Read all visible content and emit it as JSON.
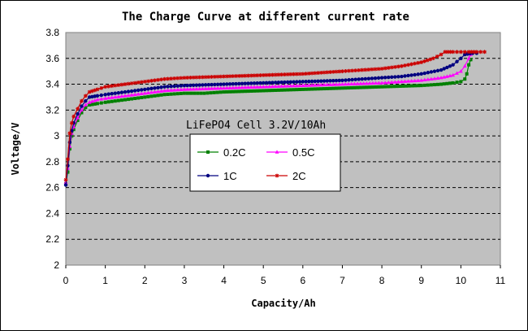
{
  "chart_data": {
    "type": "line",
    "title": "The Charge Curve at different current rate",
    "xlabel": "Capacity/Ah",
    "ylabel": "Voltage/V",
    "xlim": [
      0,
      11
    ],
    "ylim": [
      2,
      3.8
    ],
    "x_ticks": [
      "0",
      "1",
      "2",
      "3",
      "4",
      "5",
      "6",
      "7",
      "8",
      "9",
      "10",
      "11"
    ],
    "y_ticks": [
      "2",
      "2.2",
      "2.4",
      "2.6",
      "2.8",
      "3",
      "3.2",
      "3.4",
      "3.6",
      "3.8"
    ],
    "grid": "horizontal dashed",
    "annotation": "LiFePO4 Cell 3.2V/10Ah",
    "legend_position": "center-left inside plot",
    "series": [
      {
        "name": "0.2C",
        "color": "#008000",
        "marker": "square",
        "points": [
          [
            0,
            2.63
          ],
          [
            0.05,
            2.72
          ],
          [
            0.1,
            2.9
          ],
          [
            0.15,
            3.0
          ],
          [
            0.2,
            3.05
          ],
          [
            0.3,
            3.12
          ],
          [
            0.4,
            3.18
          ],
          [
            0.5,
            3.22
          ],
          [
            0.6,
            3.24
          ],
          [
            0.8,
            3.25
          ],
          [
            1,
            3.26
          ],
          [
            1.5,
            3.28
          ],
          [
            2,
            3.3
          ],
          [
            2.5,
            3.32
          ],
          [
            3,
            3.33
          ],
          [
            3.5,
            3.33
          ],
          [
            4,
            3.34
          ],
          [
            5,
            3.35
          ],
          [
            6,
            3.36
          ],
          [
            7,
            3.37
          ],
          [
            8,
            3.38
          ],
          [
            9,
            3.39
          ],
          [
            9.5,
            3.4
          ],
          [
            9.8,
            3.41
          ],
          [
            10,
            3.42
          ],
          [
            10.1,
            3.44
          ],
          [
            10.15,
            3.48
          ],
          [
            10.2,
            3.55
          ],
          [
            10.25,
            3.59
          ]
        ]
      },
      {
        "name": "0.5C",
        "color": "#ff00ff",
        "marker": "triangle",
        "points": [
          [
            0,
            2.64
          ],
          [
            0.05,
            2.75
          ],
          [
            0.1,
            2.92
          ],
          [
            0.15,
            3.02
          ],
          [
            0.2,
            3.07
          ],
          [
            0.3,
            3.14
          ],
          [
            0.4,
            3.2
          ],
          [
            0.5,
            3.24
          ],
          [
            0.6,
            3.26
          ],
          [
            0.8,
            3.28
          ],
          [
            1,
            3.29
          ],
          [
            1.5,
            3.31
          ],
          [
            2,
            3.33
          ],
          [
            2.5,
            3.35
          ],
          [
            3,
            3.36
          ],
          [
            4,
            3.37
          ],
          [
            5,
            3.38
          ],
          [
            6,
            3.39
          ],
          [
            7,
            3.4
          ],
          [
            8,
            3.41
          ],
          [
            8.5,
            3.42
          ],
          [
            9,
            3.43
          ],
          [
            9.5,
            3.45
          ],
          [
            9.8,
            3.47
          ],
          [
            10,
            3.5
          ],
          [
            10.1,
            3.54
          ],
          [
            10.2,
            3.6
          ],
          [
            10.25,
            3.63
          ]
        ]
      },
      {
        "name": "1C",
        "color": "#000080",
        "marker": "circle",
        "points": [
          [
            0,
            2.62
          ],
          [
            0.05,
            2.77
          ],
          [
            0.1,
            2.95
          ],
          [
            0.15,
            3.04
          ],
          [
            0.2,
            3.1
          ],
          [
            0.3,
            3.17
          ],
          [
            0.4,
            3.23
          ],
          [
            0.5,
            3.27
          ],
          [
            0.6,
            3.3
          ],
          [
            0.8,
            3.31
          ],
          [
            1,
            3.32
          ],
          [
            1.5,
            3.34
          ],
          [
            2,
            3.36
          ],
          [
            2.5,
            3.38
          ],
          [
            3,
            3.39
          ],
          [
            4,
            3.4
          ],
          [
            5,
            3.41
          ],
          [
            6,
            3.42
          ],
          [
            7,
            3.43
          ],
          [
            7.5,
            3.44
          ],
          [
            8,
            3.45
          ],
          [
            8.5,
            3.46
          ],
          [
            9,
            3.48
          ],
          [
            9.5,
            3.51
          ],
          [
            9.8,
            3.55
          ],
          [
            10,
            3.6
          ],
          [
            10.1,
            3.63
          ],
          [
            10.3,
            3.64
          ],
          [
            10.4,
            3.64
          ]
        ]
      },
      {
        "name": "2C",
        "color": "#cc0000",
        "marker": "star",
        "points": [
          [
            0,
            2.66
          ],
          [
            0.05,
            2.82
          ],
          [
            0.1,
            3.02
          ],
          [
            0.15,
            3.1
          ],
          [
            0.2,
            3.15
          ],
          [
            0.3,
            3.21
          ],
          [
            0.4,
            3.27
          ],
          [
            0.5,
            3.31
          ],
          [
            0.6,
            3.34
          ],
          [
            0.8,
            3.36
          ],
          [
            1,
            3.38
          ],
          [
            1.5,
            3.4
          ],
          [
            2,
            3.42
          ],
          [
            2.5,
            3.44
          ],
          [
            3,
            3.45
          ],
          [
            4,
            3.46
          ],
          [
            5,
            3.47
          ],
          [
            6,
            3.48
          ],
          [
            7,
            3.5
          ],
          [
            7.5,
            3.51
          ],
          [
            8,
            3.52
          ],
          [
            8.5,
            3.54
          ],
          [
            9,
            3.57
          ],
          [
            9.3,
            3.6
          ],
          [
            9.5,
            3.63
          ],
          [
            9.6,
            3.65
          ],
          [
            9.8,
            3.65
          ],
          [
            10,
            3.65
          ],
          [
            10.2,
            3.65
          ],
          [
            10.4,
            3.65
          ],
          [
            10.6,
            3.65
          ]
        ]
      }
    ]
  }
}
